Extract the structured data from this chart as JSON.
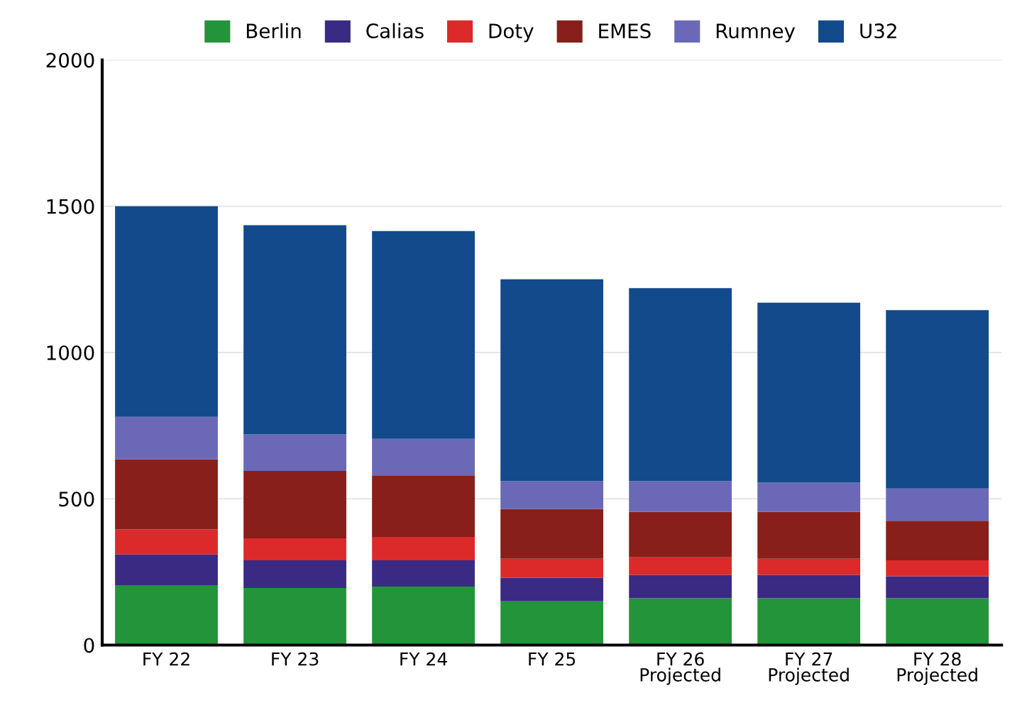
{
  "chart_data": {
    "type": "bar",
    "stacked": true,
    "categories": [
      "FY 22",
      "FY 23",
      "FY 24",
      "FY 25",
      "FY 26\nProjected",
      "FY 27\nProjected",
      "FY 28\nProjected"
    ],
    "series": [
      {
        "name": "Berlin",
        "color": "#23943a",
        "values": [
          205,
          195,
          200,
          150,
          160,
          160,
          160
        ]
      },
      {
        "name": "Calias",
        "color": "#3a2a84",
        "values": [
          105,
          95,
          90,
          80,
          80,
          80,
          75
        ]
      },
      {
        "name": "Doty",
        "color": "#dc2a2a",
        "values": [
          85,
          75,
          80,
          65,
          60,
          55,
          55
        ]
      },
      {
        "name": "EMES",
        "color": "#881f1a",
        "values": [
          240,
          230,
          210,
          170,
          155,
          160,
          135
        ]
      },
      {
        "name": "Rumney",
        "color": "#6b68b8",
        "values": [
          145,
          125,
          125,
          95,
          105,
          100,
          110
        ]
      },
      {
        "name": "U32",
        "color": "#124a8c",
        "values": [
          720,
          715,
          710,
          690,
          660,
          615,
          610
        ]
      }
    ],
    "ylim": [
      0,
      2000
    ],
    "yticks": [
      0,
      500,
      1000,
      1500,
      2000
    ],
    "grid": "y",
    "legend": "top"
  }
}
